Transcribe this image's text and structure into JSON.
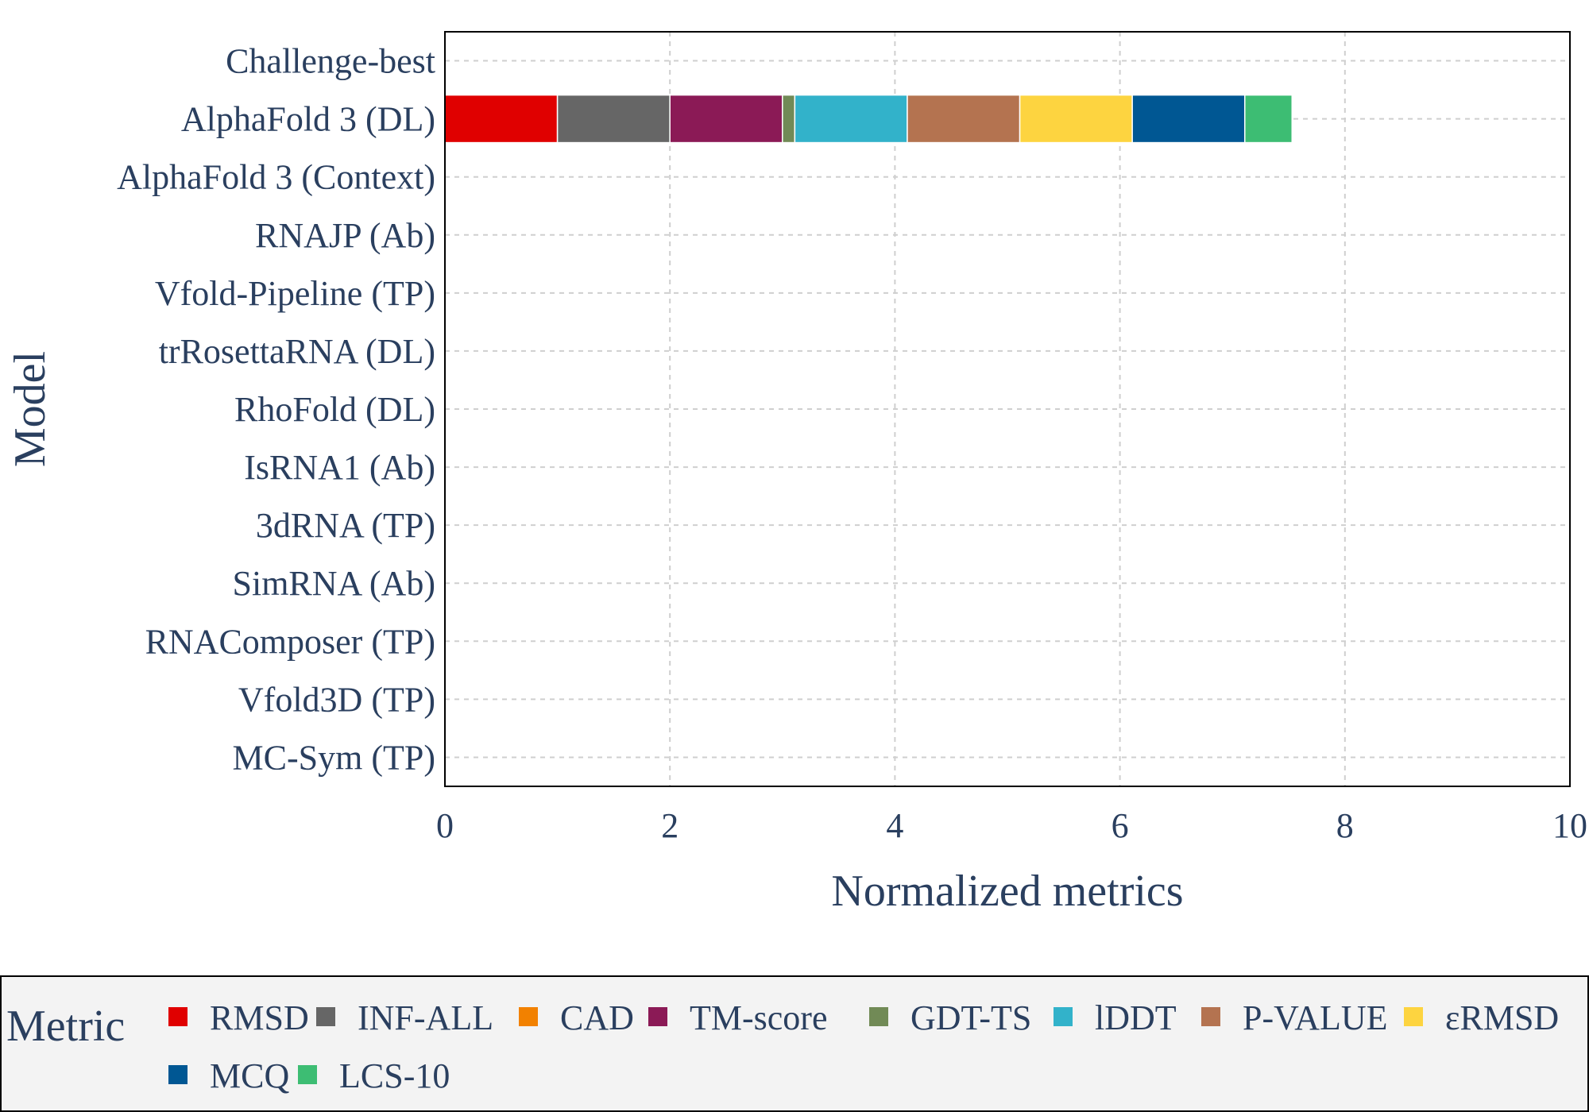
{
  "chart_data": {
    "type": "bar",
    "orientation": "horizontal",
    "stacked": true,
    "xlabel": "Normalized metrics",
    "ylabel": "Model",
    "xlim": [
      0,
      10
    ],
    "x_ticks": [
      0,
      2,
      4,
      6,
      8,
      10
    ],
    "grid": true,
    "categories": [
      "Challenge-best",
      "AlphaFold 3 (DL)",
      "AlphaFold 3 (Context)",
      "RNAJP (Ab)",
      "Vfold-Pipeline (TP)",
      "trRosettaRNA (DL)",
      "RhoFold (DL)",
      "IsRNA1 (Ab)",
      "3dRNA (TP)",
      "SimRNA (Ab)",
      "RNAComposer (TP)",
      "Vfold3D (TP)",
      "MC-Sym (TP)"
    ],
    "legend": {
      "title": "Metric",
      "position": "bottom"
    },
    "series": [
      {
        "name": "RMSD",
        "color": "#e00000",
        "values": [
          0,
          1.0,
          0,
          0,
          0,
          0,
          0,
          0,
          0,
          0,
          0,
          0,
          0
        ]
      },
      {
        "name": "INF-ALL",
        "color": "#666666",
        "values": [
          0,
          1.0,
          0,
          0,
          0,
          0,
          0,
          0,
          0,
          0,
          0,
          0,
          0
        ]
      },
      {
        "name": "CAD",
        "color": "#f28100",
        "values": [
          0,
          0.0,
          0,
          0,
          0,
          0,
          0,
          0,
          0,
          0,
          0,
          0,
          0
        ]
      },
      {
        "name": "TM-score",
        "color": "#8b1a56",
        "values": [
          0,
          1.0,
          0,
          0,
          0,
          0,
          0,
          0,
          0,
          0,
          0,
          0,
          0
        ]
      },
      {
        "name": "GDT-TS",
        "color": "#718a56",
        "values": [
          0,
          0.11,
          0,
          0,
          0,
          0,
          0,
          0,
          0,
          0,
          0,
          0,
          0
        ]
      },
      {
        "name": "lDDT",
        "color": "#32b2ca",
        "values": [
          0,
          1.0,
          0,
          0,
          0,
          0,
          0,
          0,
          0,
          0,
          0,
          0,
          0
        ]
      },
      {
        "name": "P-VALUE",
        "color": "#b47350",
        "values": [
          0,
          1.0,
          0,
          0,
          0,
          0,
          0,
          0,
          0,
          0,
          0,
          0,
          0
        ]
      },
      {
        "name": "εRMSD",
        "color": "#fdd440",
        "values": [
          0,
          1.0,
          0,
          0,
          0,
          0,
          0,
          0,
          0,
          0,
          0,
          0,
          0
        ]
      },
      {
        "name": "MCQ",
        "color": "#005793",
        "values": [
          0,
          1.0,
          0,
          0,
          0,
          0,
          0,
          0,
          0,
          0,
          0,
          0,
          0
        ]
      },
      {
        "name": "LCS-10",
        "color": "#3dbd73",
        "values": [
          0,
          0.42,
          0,
          0,
          0,
          0,
          0,
          0,
          0,
          0,
          0,
          0,
          0
        ]
      }
    ]
  }
}
